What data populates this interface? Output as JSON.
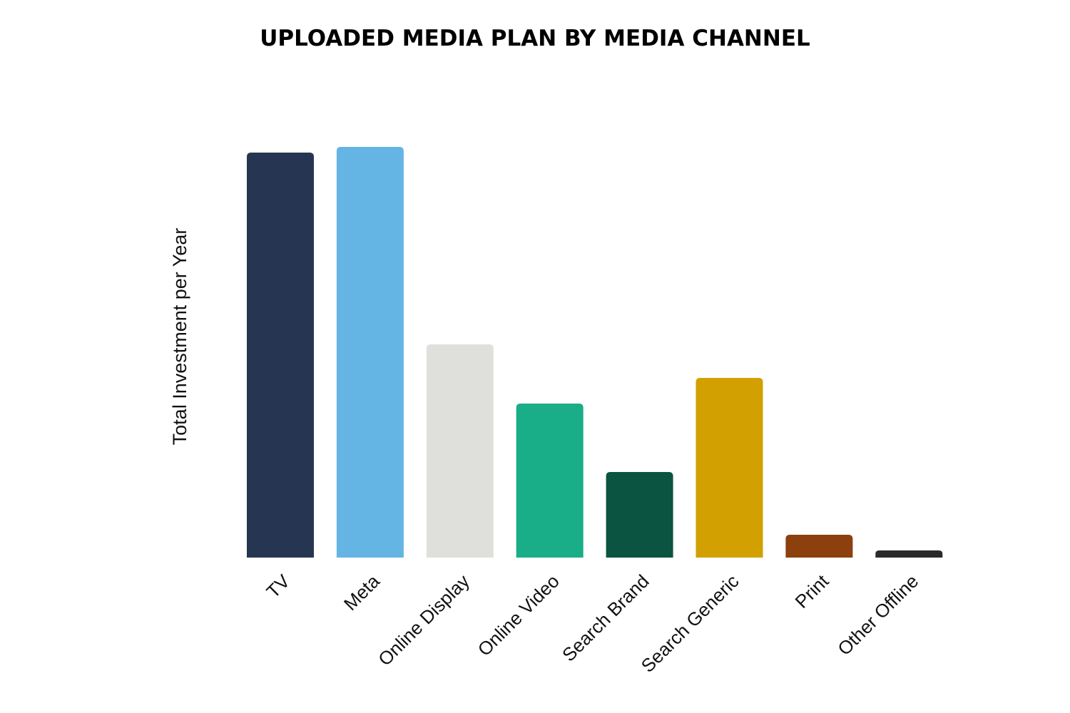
{
  "chart_data": {
    "type": "bar",
    "title": "UPLOADED MEDIA PLAN BY MEDIA CHANNEL",
    "xlabel": "",
    "ylabel": "Total Investment per Year",
    "categories": [
      "TV",
      "Meta",
      "Online Display",
      "Online Video",
      "Search Brand",
      "Search Generic",
      "Print",
      "Other Offline"
    ],
    "values": [
      568,
      576,
      299,
      216,
      120,
      252,
      32,
      10
    ],
    "colors": [
      "#263652",
      "#64B5E3",
      "#DFE0DC",
      "#19AD88",
      "#0B5441",
      "#D2A000",
      "#8B400E",
      "#2A2A2A"
    ],
    "ylim": [
      0,
      576
    ],
    "y_ticks_shown": false,
    "grid": false,
    "legend": "none"
  }
}
